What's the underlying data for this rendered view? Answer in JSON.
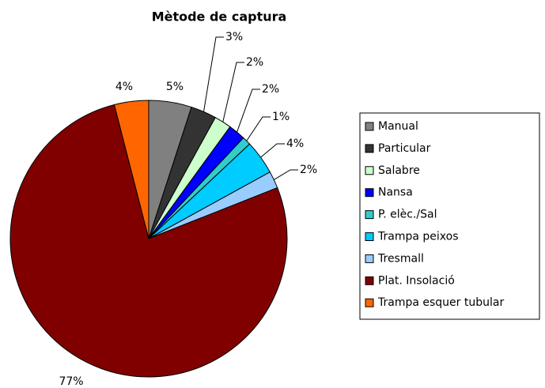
{
  "chart_data": {
    "type": "pie",
    "title": "Mètode de captura",
    "categories": [
      "Manual",
      "Particular",
      "Salabre",
      "Nansa",
      "P. elèc./Sal",
      "Trampa peixos",
      "Tresmall",
      "Plat. Insolació",
      "Trampa esquer tubular"
    ],
    "values": [
      5,
      3,
      2,
      2,
      1,
      4,
      2,
      77,
      4
    ],
    "value_labels": [
      "5%",
      "3%",
      "2%",
      "2%",
      "1%",
      "4%",
      "2%",
      "77%",
      "4%"
    ],
    "colors": [
      "#808080",
      "#333333",
      "#ccffcc",
      "#0000ff",
      "#33cccc",
      "#00ccff",
      "#99ccff",
      "#800000",
      "#ff6600"
    ],
    "legend": "right"
  }
}
